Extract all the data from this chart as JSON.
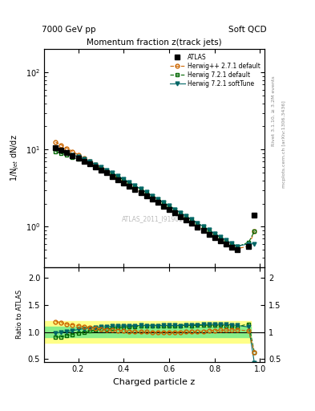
{
  "title_top_left": "7000 GeV pp",
  "title_top_right": "Soft QCD",
  "plot_title": "Momentum fraction z(track jets)",
  "xlabel": "Charged particle z",
  "ylabel_main": "1/N$_{jet}$ dN/dz",
  "ylabel_ratio": "Ratio to ATLAS",
  "right_label_top": "Rivet 3.1.10, ≥ 3.2M events",
  "right_label_bottom": "mcplots.cern.ch [arXiv:1306.3436]",
  "watermark": "ATLAS_2011_I919017",
  "z_values": [
    0.1,
    0.125,
    0.15,
    0.175,
    0.2,
    0.225,
    0.25,
    0.275,
    0.3,
    0.325,
    0.35,
    0.375,
    0.4,
    0.425,
    0.45,
    0.475,
    0.5,
    0.525,
    0.55,
    0.575,
    0.6,
    0.625,
    0.65,
    0.675,
    0.7,
    0.725,
    0.75,
    0.775,
    0.8,
    0.825,
    0.85,
    0.875,
    0.9,
    0.95,
    0.975
  ],
  "atlas_data": [
    10.5,
    9.8,
    9.1,
    8.4,
    7.7,
    7.1,
    6.5,
    5.95,
    5.45,
    4.98,
    4.52,
    4.1,
    3.73,
    3.38,
    3.06,
    2.77,
    2.51,
    2.27,
    2.05,
    1.85,
    1.67,
    1.51,
    1.36,
    1.22,
    1.1,
    0.99,
    0.89,
    0.8,
    0.72,
    0.65,
    0.59,
    0.54,
    0.5,
    0.55,
    1.4
  ],
  "herwig_pp_data": [
    12.5,
    11.5,
    10.4,
    9.5,
    8.6,
    7.8,
    7.05,
    6.38,
    5.75,
    5.2,
    4.68,
    4.22,
    3.8,
    3.43,
    3.09,
    2.79,
    2.52,
    2.27,
    2.05,
    1.85,
    1.67,
    1.51,
    1.36,
    1.23,
    1.11,
    1.0,
    0.9,
    0.82,
    0.74,
    0.67,
    0.61,
    0.56,
    0.52,
    0.56,
    0.88
  ],
  "herwig721_default_data": [
    9.5,
    8.9,
    8.5,
    8.0,
    7.55,
    7.08,
    6.62,
    6.16,
    5.7,
    5.26,
    4.84,
    4.44,
    4.06,
    3.71,
    3.37,
    3.07,
    2.78,
    2.52,
    2.28,
    2.06,
    1.86,
    1.68,
    1.52,
    1.37,
    1.23,
    1.11,
    1.0,
    0.9,
    0.81,
    0.73,
    0.66,
    0.6,
    0.55,
    0.63,
    0.87
  ],
  "herwig721_softtune_data": [
    10.3,
    9.7,
    9.15,
    8.6,
    8.05,
    7.52,
    6.98,
    6.46,
    5.95,
    5.46,
    5.0,
    4.56,
    4.15,
    3.77,
    3.42,
    3.1,
    2.8,
    2.53,
    2.29,
    2.07,
    1.87,
    1.69,
    1.52,
    1.37,
    1.24,
    1.12,
    1.01,
    0.91,
    0.82,
    0.74,
    0.67,
    0.61,
    0.56,
    0.6,
    0.6
  ],
  "atlas_color": "#000000",
  "herwig_pp_color": "#cc6600",
  "herwig721_default_color": "#006600",
  "herwig721_softtune_color": "#006666",
  "band_yellow": "#ffff88",
  "band_green": "#88ee88",
  "ylim_main": [
    0.3,
    200
  ],
  "ylim_ratio": [
    0.45,
    2.2
  ],
  "xlim": [
    0.05,
    1.02
  ]
}
